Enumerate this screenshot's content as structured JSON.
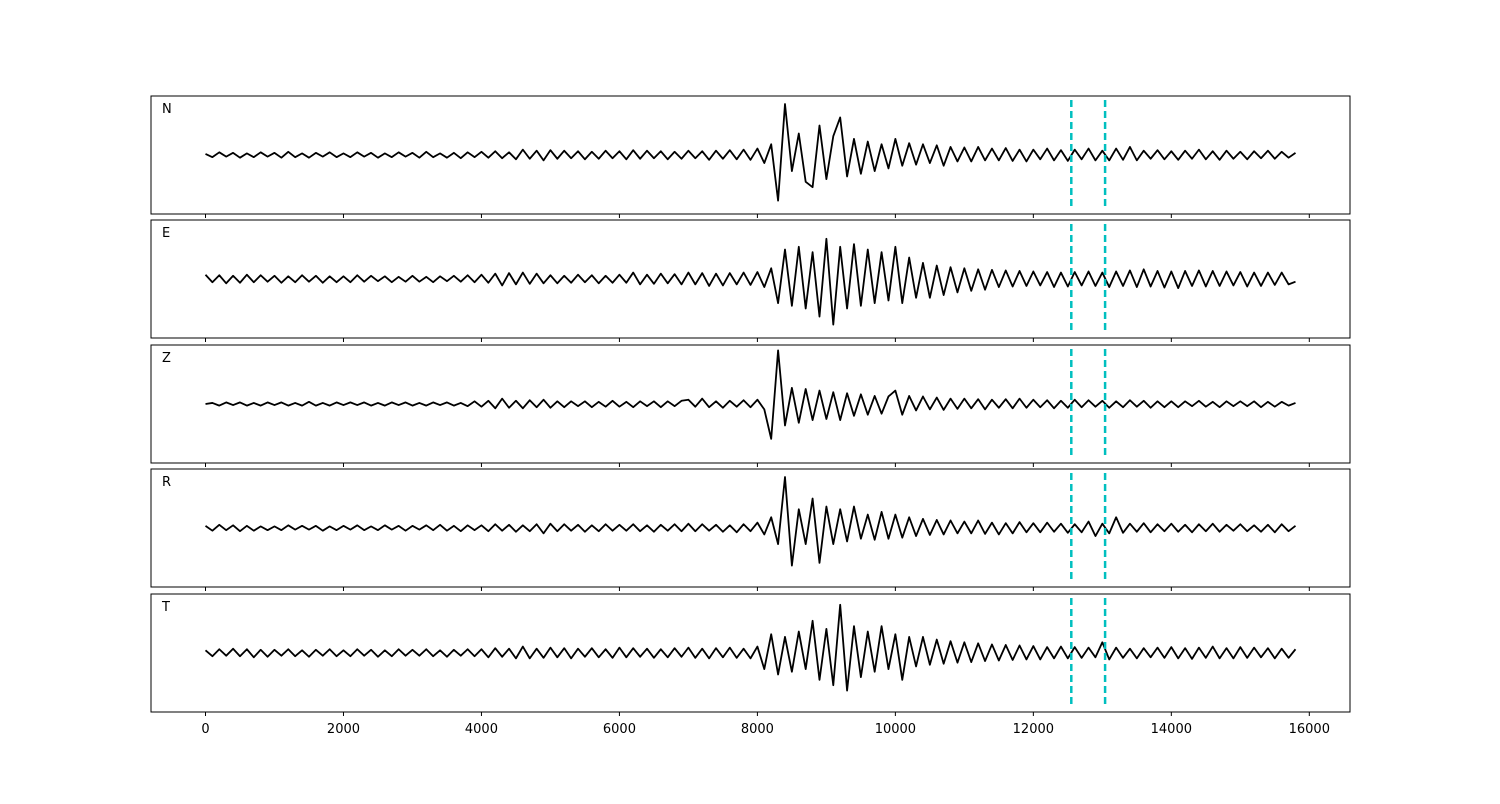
{
  "chart_data": {
    "type": "line",
    "x": [
      0,
      100,
      200,
      300,
      400,
      500,
      600,
      700,
      800,
      900,
      1000,
      1100,
      1200,
      1300,
      1400,
      1500,
      1600,
      1700,
      1800,
      1900,
      2000,
      2100,
      2200,
      2300,
      2400,
      2500,
      2600,
      2700,
      2800,
      2900,
      3000,
      3100,
      3200,
      3300,
      3400,
      3500,
      3600,
      3700,
      3800,
      3900,
      4000,
      4100,
      4200,
      4300,
      4400,
      4500,
      4600,
      4700,
      4800,
      4900,
      5000,
      5100,
      5200,
      5300,
      5400,
      5500,
      5600,
      5700,
      5800,
      5900,
      6000,
      6100,
      6200,
      6300,
      6400,
      6500,
      6600,
      6700,
      6800,
      6900,
      7000,
      7100,
      7200,
      7300,
      7400,
      7500,
      7600,
      7700,
      7800,
      7900,
      8000,
      8100,
      8200,
      8300,
      8400,
      8500,
      8600,
      8700,
      8800,
      8900,
      9000,
      9100,
      9200,
      9300,
      9400,
      9500,
      9600,
      9700,
      9800,
      9900,
      10000,
      10100,
      10200,
      10300,
      10400,
      10500,
      10600,
      10700,
      10800,
      10900,
      11000,
      11100,
      11200,
      11300,
      11400,
      11500,
      11600,
      11700,
      11800,
      11900,
      12000,
      12100,
      12200,
      12300,
      12400,
      12500,
      12600,
      12700,
      12800,
      12900,
      13000,
      13100,
      13200,
      13300,
      13400,
      13500,
      13600,
      13700,
      13800,
      13900,
      14000,
      14100,
      14200,
      14300,
      14400,
      14500,
      14600,
      14700,
      14800,
      14900,
      15000,
      15100,
      15200,
      15300,
      15400,
      15500,
      15600,
      15700,
      15800
    ],
    "series": [
      {
        "name": "N",
        "color": "#000000",
        "values": [
          0.02,
          -0.04,
          0.05,
          -0.03,
          0.04,
          -0.05,
          0.03,
          -0.04,
          0.05,
          -0.03,
          0.04,
          -0.05,
          0.06,
          -0.04,
          0.03,
          -0.05,
          0.04,
          -0.03,
          0.05,
          -0.04,
          0.03,
          -0.04,
          0.05,
          -0.03,
          0.04,
          -0.05,
          0.03,
          -0.04,
          0.05,
          -0.03,
          0.04,
          -0.05,
          0.06,
          -0.04,
          0.03,
          -0.05,
          0.04,
          -0.06,
          0.05,
          -0.04,
          0.06,
          -0.05,
          0.07,
          -0.06,
          0.05,
          -0.08,
          0.1,
          -0.07,
          0.08,
          -0.1,
          0.09,
          -0.07,
          0.08,
          -0.06,
          0.07,
          -0.08,
          0.06,
          -0.07,
          0.08,
          -0.06,
          0.07,
          -0.08,
          0.09,
          -0.07,
          0.08,
          -0.06,
          0.07,
          -0.08,
          0.06,
          -0.07,
          0.08,
          -0.06,
          0.07,
          -0.09,
          0.08,
          -0.07,
          0.09,
          -0.08,
          0.1,
          -0.09,
          0.12,
          -0.15,
          0.2,
          -0.85,
          0.95,
          -0.3,
          0.4,
          -0.5,
          -0.6,
          0.55,
          -0.45,
          0.35,
          0.7,
          -0.4,
          0.3,
          -0.35,
          0.25,
          -0.3,
          0.2,
          -0.25,
          0.3,
          -0.2,
          0.22,
          -0.18,
          0.2,
          -0.15,
          0.18,
          -0.2,
          0.15,
          -0.12,
          0.14,
          -0.12,
          0.15,
          -0.1,
          0.12,
          -0.1,
          0.13,
          -0.11,
          0.1,
          -0.12,
          0.1,
          -0.08,
          0.12,
          -0.1,
          0.09,
          -0.11,
          0.1,
          -0.08,
          0.12,
          -0.1,
          0.08,
          -0.1,
          0.12,
          -0.09,
          0.15,
          -0.1,
          0.08,
          -0.07,
          0.09,
          -0.08,
          0.07,
          -0.09,
          0.08,
          -0.07,
          0.1,
          -0.08,
          0.07,
          -0.09,
          0.08,
          -0.07,
          0.06,
          -0.08,
          0.07,
          -0.06,
          0.08,
          -0.07,
          0.06,
          -0.05,
          0.04
        ]
      },
      {
        "name": "E",
        "color": "#000000",
        "values": [
          0.08,
          -0.06,
          0.07,
          -0.08,
          0.06,
          -0.07,
          0.08,
          -0.06,
          0.07,
          -0.05,
          0.06,
          -0.07,
          0.05,
          -0.06,
          0.07,
          -0.05,
          0.06,
          -0.07,
          0.05,
          -0.06,
          0.05,
          -0.06,
          0.07,
          -0.05,
          0.06,
          -0.04,
          0.05,
          -0.06,
          0.04,
          -0.05,
          0.06,
          -0.05,
          0.04,
          -0.06,
          0.05,
          -0.04,
          0.06,
          -0.05,
          0.07,
          -0.06,
          0.08,
          -0.07,
          0.1,
          -0.12,
          0.11,
          -0.1,
          0.12,
          -0.09,
          0.1,
          -0.08,
          0.07,
          -0.08,
          0.06,
          -0.07,
          0.08,
          -0.06,
          0.07,
          -0.08,
          0.06,
          -0.07,
          0.08,
          -0.07,
          0.12,
          -0.1,
          0.08,
          -0.09,
          0.1,
          -0.08,
          0.09,
          -0.1,
          0.12,
          -0.1,
          0.11,
          -0.13,
          0.1,
          -0.12,
          0.11,
          -0.1,
          0.12,
          -0.11,
          0.13,
          -0.15,
          0.2,
          -0.45,
          0.55,
          -0.5,
          0.6,
          -0.55,
          0.5,
          -0.7,
          0.75,
          -0.85,
          0.6,
          -0.55,
          0.65,
          -0.5,
          0.55,
          -0.45,
          0.5,
          -0.4,
          0.6,
          -0.45,
          0.4,
          -0.35,
          0.3,
          -0.35,
          0.25,
          -0.3,
          0.22,
          -0.25,
          0.2,
          -0.22,
          0.18,
          -0.2,
          0.17,
          -0.15,
          0.16,
          -0.14,
          0.15,
          -0.13,
          0.14,
          -0.12,
          0.13,
          -0.15,
          0.12,
          -0.14,
          0.13,
          -0.12,
          0.14,
          -0.13,
          0.12,
          -0.15,
          0.14,
          -0.13,
          0.16,
          -0.15,
          0.18,
          -0.14,
          0.15,
          -0.16,
          0.14,
          -0.17,
          0.15,
          -0.13,
          0.16,
          -0.14,
          0.15,
          -0.13,
          0.14,
          -0.12,
          0.13,
          -0.14,
          0.12,
          -0.13,
          0.12,
          -0.11,
          0.12,
          -0.1,
          -0.05
        ]
      },
      {
        "name": "Z",
        "color": "#000000",
        "values": [
          0.0,
          0.02,
          -0.03,
          0.03,
          -0.02,
          0.03,
          -0.03,
          0.02,
          -0.03,
          0.03,
          -0.02,
          0.03,
          -0.03,
          0.02,
          -0.03,
          0.04,
          -0.03,
          0.02,
          -0.03,
          0.03,
          -0.02,
          0.03,
          -0.02,
          0.03,
          -0.03,
          0.02,
          -0.03,
          0.03,
          -0.02,
          0.03,
          -0.03,
          0.02,
          -0.03,
          0.03,
          -0.02,
          0.03,
          -0.03,
          0.02,
          -0.04,
          0.05,
          -0.05,
          0.06,
          -0.08,
          0.1,
          -0.07,
          0.06,
          -0.08,
          0.07,
          -0.06,
          0.08,
          -0.07,
          0.05,
          -0.06,
          0.05,
          -0.04,
          0.05,
          -0.06,
          0.04,
          -0.05,
          0.06,
          -0.05,
          0.04,
          -0.06,
          0.05,
          -0.04,
          0.05,
          -0.06,
          0.05,
          -0.04,
          0.06,
          0.08,
          -0.05,
          0.1,
          -0.06,
          0.05,
          -0.07,
          0.06,
          -0.05,
          0.07,
          -0.06,
          0.08,
          -0.1,
          -0.65,
          1.0,
          -0.4,
          0.3,
          -0.35,
          0.28,
          -0.3,
          0.25,
          -0.28,
          0.22,
          -0.3,
          0.2,
          -0.22,
          0.18,
          -0.2,
          0.15,
          -0.18,
          0.14,
          0.25,
          -0.2,
          0.15,
          -0.12,
          0.14,
          -0.1,
          0.12,
          -0.11,
          0.1,
          -0.09,
          0.1,
          -0.08,
          0.09,
          -0.1,
          0.08,
          -0.07,
          0.09,
          -0.08,
          0.1,
          -0.07,
          0.08,
          -0.06,
          0.07,
          -0.08,
          0.06,
          -0.07,
          0.08,
          -0.06,
          0.07,
          -0.05,
          0.06,
          -0.07,
          0.05,
          -0.06,
          0.07,
          -0.05,
          0.06,
          -0.07,
          0.05,
          -0.06,
          0.05,
          -0.06,
          0.05,
          -0.04,
          0.06,
          -0.05,
          0.04,
          -0.06,
          0.05,
          -0.04,
          0.05,
          -0.04,
          0.05,
          -0.06,
          0.04,
          -0.05,
          0.04,
          -0.03,
          0.02
        ]
      },
      {
        "name": "R",
        "color": "#000000",
        "values": [
          0.04,
          -0.05,
          0.06,
          -0.04,
          0.05,
          -0.06,
          0.04,
          -0.05,
          0.03,
          -0.04,
          0.03,
          -0.04,
          0.05,
          -0.03,
          0.04,
          -0.03,
          0.04,
          -0.05,
          0.03,
          -0.04,
          0.04,
          -0.03,
          0.05,
          -0.04,
          0.03,
          -0.04,
          0.05,
          -0.03,
          0.04,
          -0.05,
          0.04,
          -0.03,
          0.05,
          -0.04,
          0.06,
          -0.05,
          0.04,
          -0.06,
          0.05,
          -0.04,
          0.05,
          -0.06,
          0.07,
          -0.05,
          0.06,
          -0.07,
          0.05,
          -0.06,
          0.07,
          -0.1,
          0.08,
          -0.06,
          0.07,
          -0.05,
          0.06,
          -0.07,
          0.05,
          -0.06,
          0.07,
          -0.05,
          0.06,
          -0.05,
          0.07,
          -0.06,
          0.05,
          -0.07,
          0.06,
          -0.05,
          0.07,
          -0.06,
          0.08,
          -0.06,
          0.07,
          -0.05,
          0.06,
          -0.07,
          0.05,
          -0.08,
          0.07,
          -0.06,
          0.1,
          -0.12,
          0.2,
          -0.3,
          0.95,
          -0.7,
          0.35,
          -0.3,
          0.55,
          -0.65,
          0.4,
          -0.3,
          0.35,
          -0.25,
          0.4,
          -0.2,
          0.25,
          -0.22,
          0.3,
          -0.2,
          0.25,
          -0.18,
          0.2,
          -0.15,
          0.17,
          -0.13,
          0.15,
          -0.12,
          0.14,
          -0.1,
          0.12,
          -0.1,
          0.14,
          -0.11,
          0.1,
          -0.12,
          0.09,
          -0.1,
          0.11,
          -0.08,
          0.09,
          -0.08,
          0.1,
          -0.07,
          0.08,
          -0.09,
          0.07,
          -0.08,
          0.12,
          -0.15,
          0.08,
          -0.1,
          0.2,
          -0.09,
          0.08,
          -0.07,
          0.09,
          -0.08,
          0.07,
          -0.06,
          0.08,
          -0.07,
          0.06,
          -0.08,
          0.07,
          -0.06,
          0.08,
          -0.07,
          0.06,
          -0.05,
          0.07,
          -0.06,
          0.05,
          -0.07,
          0.06,
          -0.08,
          0.07,
          -0.06,
          0.04
        ]
      },
      {
        "name": "T",
        "color": "#000000",
        "values": [
          0.05,
          -0.06,
          0.07,
          -0.05,
          0.08,
          -0.06,
          0.07,
          -0.08,
          0.06,
          -0.07,
          0.06,
          -0.05,
          0.07,
          -0.06,
          0.05,
          -0.07,
          0.06,
          -0.05,
          0.07,
          -0.06,
          0.05,
          -0.06,
          0.07,
          -0.05,
          0.06,
          -0.07,
          0.05,
          -0.06,
          0.07,
          -0.05,
          0.06,
          -0.05,
          0.07,
          -0.06,
          0.05,
          -0.07,
          0.06,
          -0.05,
          0.07,
          -0.06,
          0.07,
          -0.08,
          0.09,
          -0.07,
          0.08,
          -0.1,
          0.12,
          -0.1,
          0.08,
          -0.09,
          0.1,
          -0.08,
          0.09,
          -0.1,
          0.08,
          -0.07,
          0.09,
          -0.08,
          0.07,
          -0.09,
          0.1,
          -0.08,
          0.09,
          -0.07,
          0.08,
          -0.09,
          0.07,
          -0.08,
          0.09,
          -0.07,
          0.1,
          -0.09,
          0.08,
          -0.1,
          0.09,
          -0.08,
          0.1,
          -0.09,
          0.08,
          -0.1,
          0.12,
          -0.3,
          0.35,
          -0.4,
          0.3,
          -0.35,
          0.4,
          -0.3,
          0.6,
          -0.5,
          0.45,
          -0.6,
          0.9,
          -0.7,
          0.5,
          -0.45,
          0.4,
          -0.35,
          0.5,
          -0.3,
          0.35,
          -0.5,
          0.3,
          -0.25,
          0.3,
          -0.22,
          0.25,
          -0.2,
          0.22,
          -0.18,
          0.2,
          -0.17,
          0.18,
          -0.15,
          0.16,
          -0.14,
          0.15,
          -0.13,
          0.14,
          -0.12,
          0.13,
          -0.12,
          0.11,
          -0.1,
          0.12,
          -0.1,
          0.11,
          -0.09,
          0.1,
          -0.08,
          0.2,
          -0.12,
          0.1,
          -0.09,
          0.08,
          -0.1,
          0.09,
          -0.08,
          0.1,
          -0.09,
          0.11,
          -0.1,
          0.09,
          -0.11,
          0.1,
          -0.09,
          0.12,
          -0.1,
          0.09,
          -0.1,
          0.11,
          -0.09,
          0.1,
          -0.08,
          0.09,
          -0.1,
          0.08,
          -0.09,
          0.07
        ]
      }
    ],
    "xlim": [
      -790,
      16590
    ],
    "xticks": [
      0,
      2000,
      4000,
      6000,
      8000,
      10000,
      12000,
      14000,
      16000
    ],
    "ylim": [
      -1.1,
      1.1
    ],
    "vlines": [
      12550,
      13040
    ],
    "vline_color": "#00bfbf"
  }
}
